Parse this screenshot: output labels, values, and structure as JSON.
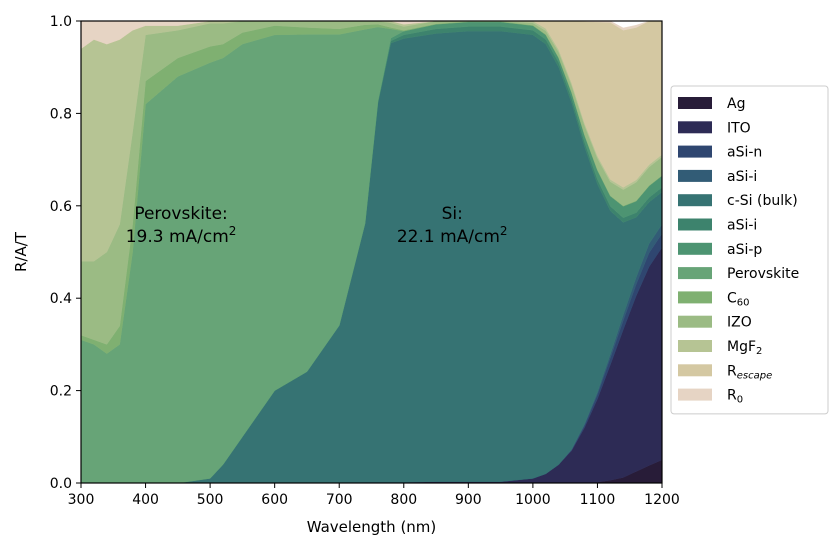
{
  "chart_data": {
    "type": "area",
    "xlabel": "Wavelength (nm)",
    "ylabel": "R/A/T",
    "xlim": [
      300,
      1200
    ],
    "ylim": [
      0.0,
      1.0
    ],
    "xticks": [
      "300",
      "400",
      "500",
      "600",
      "700",
      "800",
      "900",
      "1000",
      "1100",
      "1200"
    ],
    "yticks": [
      "0.0",
      "0.2",
      "0.4",
      "0.6",
      "0.8",
      "1.0"
    ],
    "x": [
      300,
      320,
      340,
      360,
      380,
      400,
      450,
      500,
      520,
      550,
      600,
      650,
      700,
      740,
      760,
      780,
      800,
      850,
      900,
      950,
      1000,
      1020,
      1040,
      1060,
      1080,
      1100,
      1120,
      1140,
      1160,
      1180,
      1200
    ],
    "legend_position": "right",
    "annotations": [
      {
        "line1": "Perovskite:",
        "line2_value": "19.3 mA/cm",
        "line2_sup": "2",
        "x": 455,
        "y": 0.55
      },
      {
        "line1": "Si:",
        "line2_value": "22.1 mA/cm",
        "line2_sup": "2",
        "x": 875,
        "y": 0.55
      }
    ],
    "series": [
      {
        "name": "Ag",
        "label": "Ag",
        "sub": "",
        "color": "#281c38",
        "values": [
          0,
          0,
          0,
          0,
          0,
          0,
          0,
          0,
          0,
          0,
          0,
          0,
          0,
          0,
          0,
          0,
          0,
          0,
          0,
          0,
          0,
          0,
          0,
          0,
          0,
          0.002,
          0.006,
          0.012,
          0.025,
          0.038,
          0.05
        ]
      },
      {
        "name": "ITO",
        "label": "ITO",
        "sub": "",
        "color": "#2d2b55",
        "values": [
          0,
          0,
          0,
          0,
          0,
          0,
          0,
          0,
          0,
          0,
          0,
          0.001,
          0.001,
          0.002,
          0.002,
          0.002,
          0.002,
          0.003,
          0.003,
          0.003,
          0.01,
          0.02,
          0.04,
          0.07,
          0.12,
          0.18,
          0.25,
          0.32,
          0.38,
          0.43,
          0.46
        ]
      },
      {
        "name": "aSi-n",
        "label": "aSi-n",
        "sub": "",
        "color": "#2f4670",
        "values": [
          0,
          0,
          0,
          0,
          0,
          0,
          0,
          0,
          0,
          0,
          0,
          0,
          0,
          0,
          0,
          0,
          0,
          0,
          0,
          0,
          0,
          0,
          0,
          0.002,
          0.005,
          0.01,
          0.015,
          0.02,
          0.025,
          0.03,
          0.03
        ]
      },
      {
        "name": "aSi-i",
        "label": "aSi-i",
        "sub": "",
        "color": "#325c76",
        "values": [
          0,
          0,
          0,
          0,
          0,
          0,
          0,
          0,
          0,
          0,
          0,
          0,
          0,
          0,
          0,
          0,
          0,
          0,
          0,
          0,
          0,
          0,
          0,
          0.001,
          0.003,
          0.005,
          0.008,
          0.012,
          0.015,
          0.02,
          0.02
        ]
      },
      {
        "name": "c-Si (bulk)",
        "label": "c-Si (bulk)",
        "sub": "",
        "color": "#367373",
        "values": [
          0,
          0,
          0,
          0,
          0,
          0,
          0,
          0.01,
          0.04,
          0.1,
          0.2,
          0.24,
          0.34,
          0.56,
          0.82,
          0.95,
          0.96,
          0.97,
          0.975,
          0.975,
          0.96,
          0.93,
          0.86,
          0.75,
          0.6,
          0.45,
          0.31,
          0.2,
          0.13,
          0.09,
          0.07
        ]
      },
      {
        "name": "aSi-i-2",
        "label": "aSi-i",
        "sub": "",
        "color": "#3d836d",
        "values": [
          0,
          0,
          0,
          0,
          0,
          0,
          0,
          0,
          0,
          0,
          0,
          0,
          0,
          0,
          0.002,
          0.005,
          0.008,
          0.01,
          0.01,
          0.01,
          0.01,
          0.01,
          0.01,
          0.01,
          0.01,
          0.01,
          0.01,
          0.01,
          0.01,
          0.01,
          0.01
        ]
      },
      {
        "name": "aSi-p",
        "label": "aSi-p",
        "sub": "",
        "color": "#4d9472",
        "values": [
          0,
          0,
          0,
          0,
          0,
          0,
          0,
          0,
          0,
          0,
          0,
          0,
          0,
          0,
          0.003,
          0.006,
          0.008,
          0.01,
          0.01,
          0.01,
          0.01,
          0.01,
          0.01,
          0.012,
          0.015,
          0.02,
          0.022,
          0.025,
          0.025,
          0.025,
          0.025
        ]
      },
      {
        "name": "Perovskite",
        "label": "Perovskite",
        "sub": "",
        "color": "#67a477",
        "values": [
          0.31,
          0.3,
          0.28,
          0.3,
          0.5,
          0.82,
          0.88,
          0.9,
          0.88,
          0.85,
          0.77,
          0.73,
          0.63,
          0.42,
          0.16,
          0.02,
          0,
          0,
          0,
          0,
          0,
          0,
          0,
          0,
          0,
          0,
          0,
          0,
          0,
          0,
          0
        ]
      },
      {
        "name": "C60",
        "label": "C",
        "sub": "60",
        "color": "#7fb071",
        "values": [
          0.01,
          0.01,
          0.02,
          0.04,
          0.06,
          0.05,
          0.04,
          0.035,
          0.03,
          0.025,
          0.02,
          0.015,
          0.012,
          0.01,
          0.006,
          0.003,
          0.002,
          0.001,
          0.001,
          0.001,
          0.001,
          0.001,
          0.001,
          0.001,
          0.001,
          0.001,
          0.001,
          0.001,
          0.001,
          0.001,
          0.001
        ]
      },
      {
        "name": "IZO",
        "label": "IZO",
        "sub": "",
        "color": "#9bbb84",
        "values": [
          0.16,
          0.17,
          0.2,
          0.22,
          0.2,
          0.1,
          0.06,
          0.05,
          0.045,
          0.04,
          0.035,
          0.03,
          0.025,
          0.02,
          0.015,
          0.01,
          0.008,
          0.006,
          0.005,
          0.005,
          0.005,
          0.008,
          0.012,
          0.015,
          0.02,
          0.025,
          0.03,
          0.035,
          0.04,
          0.04,
          0.04
        ]
      },
      {
        "name": "MgF2",
        "label": "MgF",
        "sub": "2",
        "color": "#b6c494",
        "values": [
          0.46,
          0.48,
          0.45,
          0.4,
          0.22,
          0.02,
          0.01,
          0.005,
          0.005,
          0.005,
          0.005,
          0.005,
          0.005,
          0.005,
          0.005,
          0.005,
          0.005,
          0.005,
          0.005,
          0.005,
          0.005,
          0.005,
          0.005,
          0.005,
          0.005,
          0.005,
          0.005,
          0.005,
          0.005,
          0.005,
          0.005
        ]
      },
      {
        "name": "R_escape",
        "label": "R",
        "sub": "escape",
        "color": "#d4c8a2",
        "values": [
          0,
          0,
          0,
          0,
          0,
          0,
          0,
          0,
          0,
          0,
          0,
          0,
          0,
          0,
          0,
          0,
          0,
          0.002,
          0.005,
          0.008,
          0.014,
          0.031,
          0.068,
          0.14,
          0.22,
          0.29,
          0.34,
          0.34,
          0.33,
          0.32,
          0.3
        ]
      },
      {
        "name": "R0",
        "label": "R",
        "sub": "0",
        "color": "#e6d4c4",
        "values": [
          0.06,
          0.04,
          0.05,
          0.04,
          0.02,
          0.008,
          0.01,
          0.01,
          0.01,
          0.01,
          0.01,
          0.01,
          0.01,
          0.005,
          0.008,
          0.01,
          0.012,
          0.01,
          0.01,
          0.007,
          0.005,
          0.005,
          0.005,
          0.005,
          0.005,
          0.005,
          0.005,
          0.005,
          0.005,
          0.005,
          0.005
        ]
      }
    ]
  }
}
